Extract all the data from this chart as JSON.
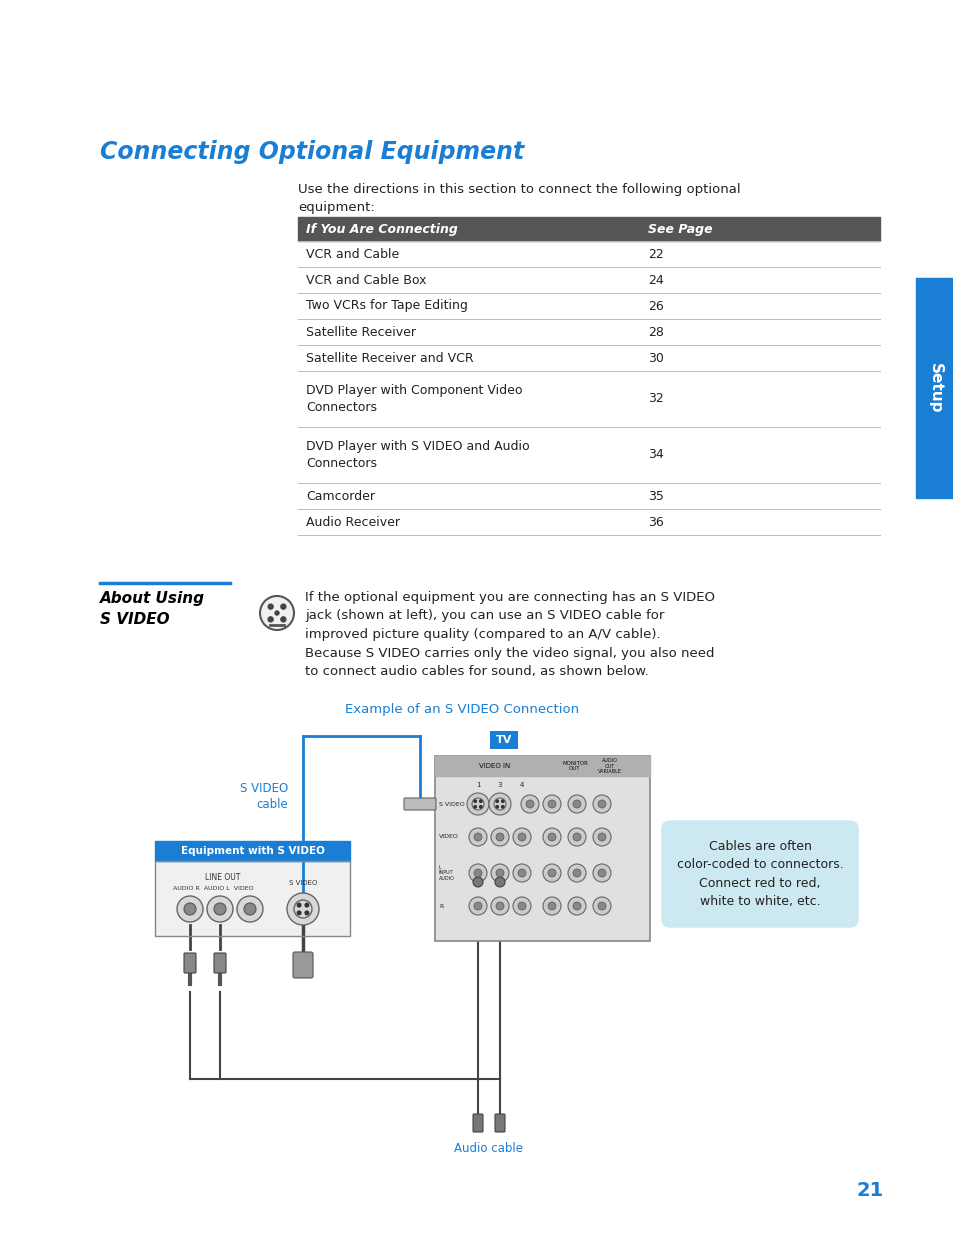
{
  "title": "Connecting Optional Equipment",
  "title_color": "#1a7fd4",
  "bg_color": "#ffffff",
  "page_number": "21",
  "intro_text": "Use the directions in this section to connect the following optional\nequipment:",
  "table_header": [
    "If You Are Connecting",
    "See Page"
  ],
  "table_header_bg": "#555555",
  "table_header_color": "#ffffff",
  "table_rows": [
    [
      "VCR and Cable",
      "22"
    ],
    [
      "VCR and Cable Box",
      "24"
    ],
    [
      "Two VCRs for Tape Editing",
      "26"
    ],
    [
      "Satellite Receiver",
      "28"
    ],
    [
      "Satellite Receiver and VCR",
      "30"
    ],
    [
      "DVD Player with Component Video\nConnectors",
      "32"
    ],
    [
      "DVD Player with S VIDEO and Audio\nConnectors",
      "34"
    ],
    [
      "Camcorder",
      "35"
    ],
    [
      "Audio Receiver",
      "36"
    ]
  ],
  "section_title": "About Using\nS VIDEO",
  "section_title_color": "#000000",
  "section_line_color": "#1a7fd4",
  "body_text": "If the optional equipment you are connecting has an S VIDEO\njack (shown at left), you can use an S VIDEO cable for\nimproved picture quality (compared to an A/V cable).\nBecause S VIDEO carries only the video signal, you also need\nto connect audio cables for sound, as shown below.",
  "example_title": "Example of an S VIDEO Connection",
  "example_title_color": "#1a7fd4",
  "svideo_label": "S VIDEO\ncable",
  "svideo_label_color": "#1a7fd4",
  "equip_label": "Equipment with S VIDEO",
  "equip_label_color": "#ffffff",
  "equip_label_bg": "#1a7fd4",
  "tv_label": "TV",
  "tv_label_color": "#ffffff",
  "tv_label_bg": "#1a7fd4",
  "audio_label": "Audio cable",
  "audio_label_color": "#1a7fd4",
  "callout_text": "Cables are often\ncolor-coded to connectors.\nConnect red to red,\nwhite to white, etc.",
  "callout_bg": "#cce8f0",
  "setup_tab_text": "Setup",
  "setup_tab_bg": "#1a7fd4",
  "setup_tab_color": "#ffffff"
}
